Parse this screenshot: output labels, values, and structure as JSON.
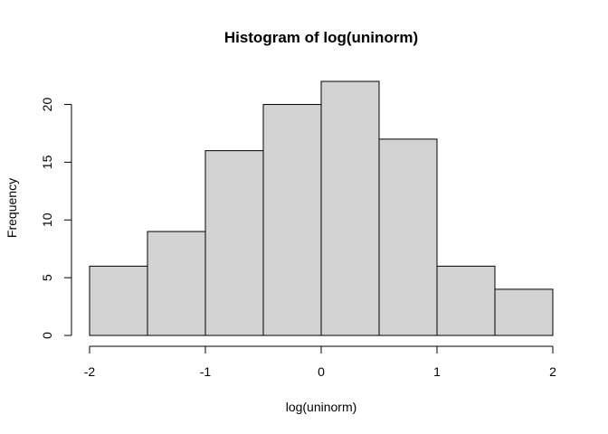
{
  "chart_data": {
    "type": "bar",
    "title": "Histogram of log(uninorm)",
    "xlabel": "log(uninorm)",
    "ylabel": "Frequency",
    "bins": [
      {
        "start": -2.0,
        "end": -1.5,
        "count": 6
      },
      {
        "start": -1.5,
        "end": -1.0,
        "count": 9
      },
      {
        "start": -1.0,
        "end": -0.5,
        "count": 16
      },
      {
        "start": -0.5,
        "end": 0.0,
        "count": 20
      },
      {
        "start": 0.0,
        "end": 0.5,
        "count": 22
      },
      {
        "start": 0.5,
        "end": 1.0,
        "count": 17
      },
      {
        "start": 1.0,
        "end": 1.5,
        "count": 6
      },
      {
        "start": 1.5,
        "end": 2.0,
        "count": 4
      }
    ],
    "xlim": [
      -2,
      2
    ],
    "ylim": [
      0,
      22
    ],
    "x_ticks": [
      -2,
      -1,
      0,
      1,
      2
    ],
    "x_tick_labels": [
      "-2",
      "-1",
      "0",
      "1",
      "2"
    ],
    "y_ticks": [
      0,
      5,
      10,
      15,
      20
    ],
    "y_tick_labels": [
      "0",
      "5",
      "10",
      "15",
      "20"
    ],
    "bar_color": "#d3d3d3",
    "grid": false,
    "legend": "none"
  }
}
